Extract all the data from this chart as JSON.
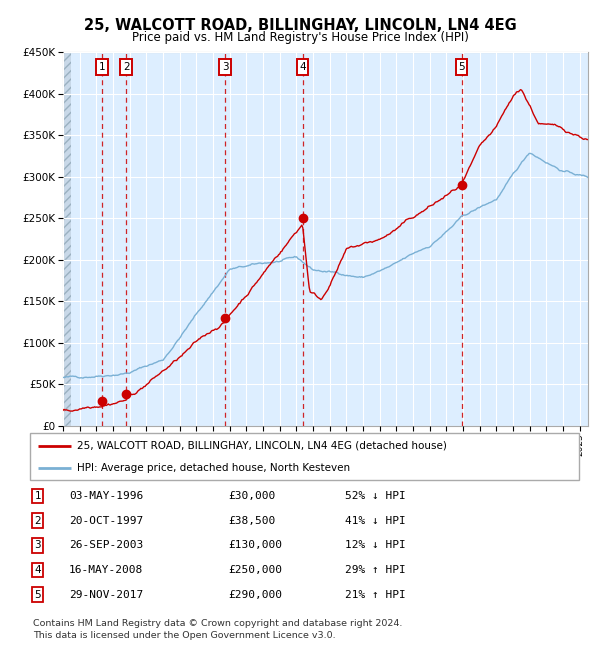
{
  "title": "25, WALCOTT ROAD, BILLINGHAY, LINCOLN, LN4 4EG",
  "subtitle": "Price paid vs. HM Land Registry's House Price Index (HPI)",
  "sale_dates_x": [
    1996.34,
    1997.8,
    2003.73,
    2008.37,
    2017.91
  ],
  "sale_prices_y": [
    30000,
    38500,
    130000,
    250000,
    290000
  ],
  "sale_labels": [
    "1",
    "2",
    "3",
    "4",
    "5"
  ],
  "sale_info": [
    [
      "1",
      "03-MAY-1996",
      "£30,000",
      "52% ↓ HPI"
    ],
    [
      "2",
      "20-OCT-1997",
      "£38,500",
      "41% ↓ HPI"
    ],
    [
      "3",
      "26-SEP-2003",
      "£130,000",
      "12% ↓ HPI"
    ],
    [
      "4",
      "16-MAY-2008",
      "£250,000",
      "29% ↑ HPI"
    ],
    [
      "5",
      "29-NOV-2017",
      "£290,000",
      "21% ↑ HPI"
    ]
  ],
  "legend_line1": "25, WALCOTT ROAD, BILLINGHAY, LINCOLN, LN4 4EG (detached house)",
  "legend_line2": "HPI: Average price, detached house, North Kesteven",
  "footer1": "Contains HM Land Registry data © Crown copyright and database right 2024.",
  "footer2": "This data is licensed under the Open Government Licence v3.0.",
  "plot_bg": "#ddeeff",
  "grid_color": "#ffffff",
  "red_line_color": "#cc0000",
  "blue_line_color": "#7ab0d4",
  "dot_color": "#cc0000",
  "dashed_line_color": "#cc0000",
  "label_box_color": "#cc0000",
  "ylim": [
    0,
    450000
  ],
  "xlim_start": 1994.0,
  "xlim_end": 2025.5,
  "yticks": [
    0,
    50000,
    100000,
    150000,
    200000,
    250000,
    300000,
    350000,
    400000,
    450000
  ],
  "ylabels": [
    "£0",
    "£50K",
    "£100K",
    "£150K",
    "£200K",
    "£250K",
    "£300K",
    "£350K",
    "£400K",
    "£450K"
  ],
  "xticks": [
    1994,
    1995,
    1996,
    1997,
    1998,
    1999,
    2000,
    2001,
    2002,
    2003,
    2004,
    2005,
    2006,
    2007,
    2008,
    2009,
    2010,
    2011,
    2012,
    2013,
    2014,
    2015,
    2016,
    2017,
    2018,
    2019,
    2020,
    2021,
    2022,
    2023,
    2024,
    2025
  ]
}
